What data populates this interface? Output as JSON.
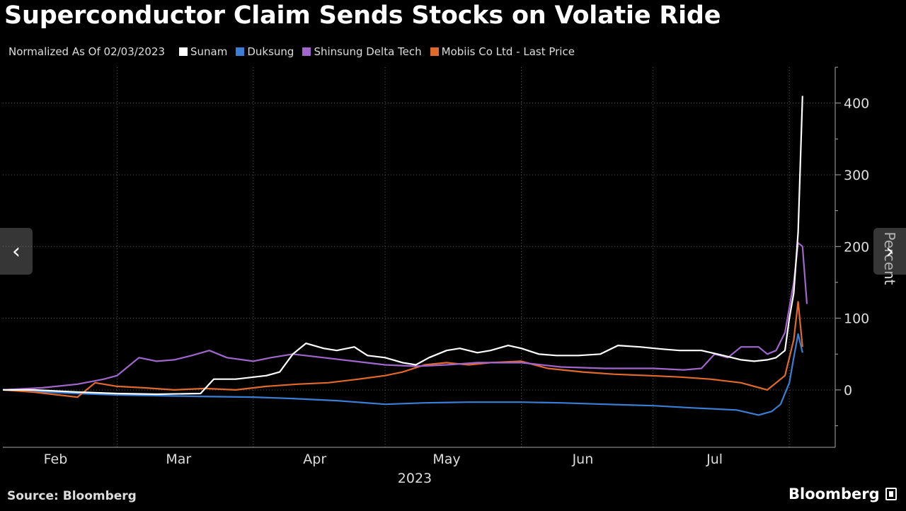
{
  "header": {
    "title": "Superconductor Claim Sends Stocks on Volatie Ride",
    "normalized": "Normalized As Of 02/03/2023"
  },
  "footer": {
    "source": "Source: Bloomberg",
    "brand": "Bloomberg"
  },
  "nav": {
    "prev_icon": "chevron-left-icon",
    "next_icon": "chevron-right-icon",
    "prev_glyph": "‹",
    "next_glyph": "›"
  },
  "chart_data": {
    "type": "line",
    "ylabel": "Percent",
    "xlabel": "2023",
    "ylim": [
      -80,
      450
    ],
    "yticks": [
      0,
      100,
      200,
      300,
      400
    ],
    "xlim": [
      "2023-02-03",
      "2023-08-05"
    ],
    "month_ticks": [
      {
        "label": "Feb",
        "date": "2023-02-15"
      },
      {
        "label": "Mar",
        "date": "2023-03-15"
      },
      {
        "label": "Apr",
        "date": "2023-04-15"
      },
      {
        "label": "May",
        "date": "2023-05-15"
      },
      {
        "label": "Jun",
        "date": "2023-06-15"
      },
      {
        "label": "Jul",
        "date": "2023-07-15"
      }
    ],
    "month_boundaries": [
      "2023-02-01",
      "2023-03-01",
      "2023-04-01",
      "2023-05-01",
      "2023-06-01",
      "2023-07-01",
      "2023-08-01"
    ],
    "grid": true,
    "legend": "top",
    "series": [
      {
        "name": "Sunam",
        "color": "#ffffff",
        "points": [
          [
            "2023-02-03",
            0
          ],
          [
            "2023-02-10",
            0
          ],
          [
            "2023-02-20",
            -3
          ],
          [
            "2023-03-01",
            -5
          ],
          [
            "2023-03-10",
            -6
          ],
          [
            "2023-03-20",
            -5
          ],
          [
            "2023-03-23",
            15
          ],
          [
            "2023-03-28",
            15
          ],
          [
            "2023-04-04",
            20
          ],
          [
            "2023-04-07",
            25
          ],
          [
            "2023-04-10",
            50
          ],
          [
            "2023-04-13",
            65
          ],
          [
            "2023-04-17",
            58
          ],
          [
            "2023-04-20",
            55
          ],
          [
            "2023-04-24",
            60
          ],
          [
            "2023-04-27",
            48
          ],
          [
            "2023-05-01",
            45
          ],
          [
            "2023-05-05",
            38
          ],
          [
            "2023-05-08",
            35
          ],
          [
            "2023-05-11",
            45
          ],
          [
            "2023-05-15",
            55
          ],
          [
            "2023-05-18",
            58
          ],
          [
            "2023-05-22",
            52
          ],
          [
            "2023-05-25",
            55
          ],
          [
            "2023-05-29",
            62
          ],
          [
            "2023-06-01",
            58
          ],
          [
            "2023-06-05",
            50
          ],
          [
            "2023-06-09",
            48
          ],
          [
            "2023-06-14",
            48
          ],
          [
            "2023-06-19",
            50
          ],
          [
            "2023-06-23",
            62
          ],
          [
            "2023-06-28",
            60
          ],
          [
            "2023-07-03",
            57
          ],
          [
            "2023-07-07",
            55
          ],
          [
            "2023-07-12",
            55
          ],
          [
            "2023-07-17",
            48
          ],
          [
            "2023-07-21",
            42
          ],
          [
            "2023-07-24",
            40
          ],
          [
            "2023-07-27",
            42
          ],
          [
            "2023-07-29",
            45
          ],
          [
            "2023-07-31",
            55
          ],
          [
            "2023-08-01",
            100
          ],
          [
            "2023-08-02",
            135
          ],
          [
            "2023-08-03",
            220
          ],
          [
            "2023-08-04",
            410
          ]
        ]
      },
      {
        "name": "Duksung",
        "color": "#3a7fd5",
        "points": [
          [
            "2023-02-03",
            0
          ],
          [
            "2023-02-10",
            -2
          ],
          [
            "2023-02-20",
            -5
          ],
          [
            "2023-03-01",
            -7
          ],
          [
            "2023-03-10",
            -8
          ],
          [
            "2023-03-20",
            -9
          ],
          [
            "2023-04-01",
            -10
          ],
          [
            "2023-04-10",
            -12
          ],
          [
            "2023-04-20",
            -15
          ],
          [
            "2023-05-01",
            -20
          ],
          [
            "2023-05-10",
            -18
          ],
          [
            "2023-05-20",
            -17
          ],
          [
            "2023-06-01",
            -17
          ],
          [
            "2023-06-10",
            -18
          ],
          [
            "2023-06-20",
            -20
          ],
          [
            "2023-07-01",
            -22
          ],
          [
            "2023-07-10",
            -25
          ],
          [
            "2023-07-20",
            -28
          ],
          [
            "2023-07-25",
            -35
          ],
          [
            "2023-07-28",
            -30
          ],
          [
            "2023-07-30",
            -20
          ],
          [
            "2023-08-01",
            10
          ],
          [
            "2023-08-02",
            45
          ],
          [
            "2023-08-03",
            78
          ],
          [
            "2023-08-04",
            52
          ]
        ]
      },
      {
        "name": "Shinsung Delta Tech",
        "color": "#a066cc",
        "points": [
          [
            "2023-02-03",
            0
          ],
          [
            "2023-02-12",
            3
          ],
          [
            "2023-02-20",
            8
          ],
          [
            "2023-02-26",
            15
          ],
          [
            "2023-03-01",
            20
          ],
          [
            "2023-03-03",
            30
          ],
          [
            "2023-03-06",
            45
          ],
          [
            "2023-03-10",
            40
          ],
          [
            "2023-03-14",
            42
          ],
          [
            "2023-03-18",
            48
          ],
          [
            "2023-03-22",
            55
          ],
          [
            "2023-03-26",
            45
          ],
          [
            "2023-04-01",
            40
          ],
          [
            "2023-04-05",
            45
          ],
          [
            "2023-04-10",
            50
          ],
          [
            "2023-04-17",
            45
          ],
          [
            "2023-04-24",
            40
          ],
          [
            "2023-05-01",
            35
          ],
          [
            "2023-05-08",
            33
          ],
          [
            "2023-05-15",
            35
          ],
          [
            "2023-05-22",
            38
          ],
          [
            "2023-06-01",
            38
          ],
          [
            "2023-06-10",
            32
          ],
          [
            "2023-06-20",
            30
          ],
          [
            "2023-07-01",
            30
          ],
          [
            "2023-07-08",
            28
          ],
          [
            "2023-07-12",
            30
          ],
          [
            "2023-07-15",
            50
          ],
          [
            "2023-07-18",
            45
          ],
          [
            "2023-07-21",
            60
          ],
          [
            "2023-07-25",
            60
          ],
          [
            "2023-07-27",
            50
          ],
          [
            "2023-07-29",
            55
          ],
          [
            "2023-07-31",
            80
          ],
          [
            "2023-08-02",
            150
          ],
          [
            "2023-08-03",
            205
          ],
          [
            "2023-08-04",
            200
          ],
          [
            "2023-08-05",
            120
          ]
        ]
      },
      {
        "name": "Mobiis Co Ltd - Last Price",
        "color": "#e06a2c",
        "points": [
          [
            "2023-02-03",
            0
          ],
          [
            "2023-02-10",
            -3
          ],
          [
            "2023-02-17",
            -8
          ],
          [
            "2023-02-20",
            -10
          ],
          [
            "2023-02-24",
            10
          ],
          [
            "2023-03-01",
            5
          ],
          [
            "2023-03-07",
            3
          ],
          [
            "2023-03-14",
            0
          ],
          [
            "2023-03-21",
            2
          ],
          [
            "2023-03-28",
            0
          ],
          [
            "2023-04-04",
            5
          ],
          [
            "2023-04-11",
            8
          ],
          [
            "2023-04-18",
            10
          ],
          [
            "2023-04-25",
            15
          ],
          [
            "2023-05-01",
            20
          ],
          [
            "2023-05-05",
            25
          ],
          [
            "2023-05-10",
            35
          ],
          [
            "2023-05-15",
            38
          ],
          [
            "2023-05-20",
            35
          ],
          [
            "2023-05-25",
            38
          ],
          [
            "2023-06-01",
            40
          ],
          [
            "2023-06-07",
            30
          ],
          [
            "2023-06-15",
            25
          ],
          [
            "2023-06-22",
            22
          ],
          [
            "2023-06-30",
            20
          ],
          [
            "2023-07-07",
            18
          ],
          [
            "2023-07-14",
            15
          ],
          [
            "2023-07-21",
            10
          ],
          [
            "2023-07-27",
            0
          ],
          [
            "2023-07-31",
            20
          ],
          [
            "2023-08-02",
            70
          ],
          [
            "2023-08-03",
            123
          ],
          [
            "2023-08-04",
            60
          ]
        ]
      }
    ]
  }
}
